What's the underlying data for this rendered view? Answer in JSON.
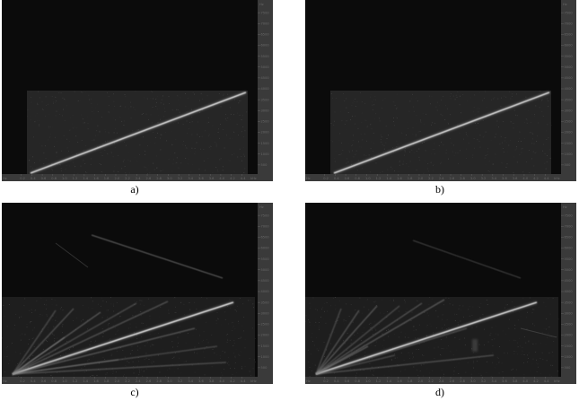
{
  "panels": [
    {
      "id": "a",
      "caption": "a)",
      "x_start_label": "Hz",
      "x_end_label": "kHz",
      "x_ticks": [
        "0.2",
        "0.4",
        "0.6",
        "0.8",
        "1.0",
        "1.2",
        "1.4",
        "1.6",
        "1.8",
        "2.0",
        "2.2",
        "2.4",
        "2.6",
        "2.8",
        "3.0",
        "3.2",
        "3.4",
        "3.6",
        "3.8",
        "4.0",
        "4.2",
        "4.4"
      ],
      "y_unit": "Hz",
      "y_ticks": [
        "7500",
        "7000",
        "6500",
        "6000",
        "5500",
        "5000",
        "4500",
        "4000",
        "3500",
        "3000",
        "2500",
        "2000",
        "1500",
        "1000",
        "500"
      ],
      "sweep_count": 1,
      "harmonics": false
    },
    {
      "id": "b",
      "caption": "b)",
      "x_start_label": "Hz",
      "x_end_label": "kHz",
      "x_ticks": [
        "0.2",
        "0.4",
        "0.6",
        "0.8",
        "1.0",
        "1.2",
        "1.4",
        "1.6",
        "1.8",
        "2.0",
        "2.2",
        "2.4",
        "2.6",
        "2.8",
        "3.0",
        "3.2",
        "3.4",
        "3.6",
        "3.8",
        "4.0",
        "4.2",
        "4.4"
      ],
      "y_unit": "Hz",
      "y_ticks": [
        "7500",
        "7000",
        "6500",
        "6000",
        "5500",
        "5000",
        "4500",
        "4000",
        "3500",
        "3000",
        "2500",
        "2000",
        "1500",
        "1000",
        "500"
      ],
      "sweep_count": 1,
      "harmonics": false
    },
    {
      "id": "c",
      "caption": "c)",
      "x_start_label": "Hz",
      "x_end_label": "kHz",
      "x_ticks": [
        "0.2",
        "0.4",
        "0.6",
        "0.8",
        "1.0",
        "1.2",
        "1.4",
        "1.6",
        "1.8",
        "2.0",
        "2.2",
        "2.4",
        "2.6",
        "2.8",
        "3.0",
        "3.2",
        "3.4",
        "3.6",
        "3.8",
        "4.0",
        "4.2",
        "4.4"
      ],
      "y_unit": "Hz",
      "y_ticks": [
        "7500",
        "7000",
        "6500",
        "6000",
        "5500",
        "5000",
        "4500",
        "4000",
        "3500",
        "3000",
        "2500",
        "2000",
        "1500",
        "1000",
        "500"
      ],
      "sweep_count": 1,
      "harmonics": true
    },
    {
      "id": "d",
      "caption": "d)",
      "x_start_label": "Hz",
      "x_end_label": "kHz",
      "x_ticks": [
        "0.2",
        "0.4",
        "0.6",
        "0.8",
        "1.0",
        "1.2",
        "1.4",
        "1.6",
        "1.8",
        "2.0",
        "2.2",
        "2.4",
        "2.6",
        "2.8",
        "3.0",
        "3.2",
        "3.4",
        "3.6",
        "3.8",
        "4.0",
        "4.2",
        "4.4"
      ],
      "y_unit": "Hz",
      "y_ticks": [
        "7500",
        "7000",
        "6500",
        "6000",
        "5500",
        "5000",
        "4500",
        "4000",
        "3500",
        "3000",
        "2500",
        "2000",
        "1500",
        "1000",
        "500"
      ],
      "sweep_count": 1,
      "harmonics": true
    }
  ],
  "colors": {
    "plot_background": "#0b0b0b",
    "noise_region": "#262626",
    "sweep_line": "#e8e8e8",
    "axis_panel": "#3a3a3a",
    "tick_color": "#6a6a6a"
  }
}
